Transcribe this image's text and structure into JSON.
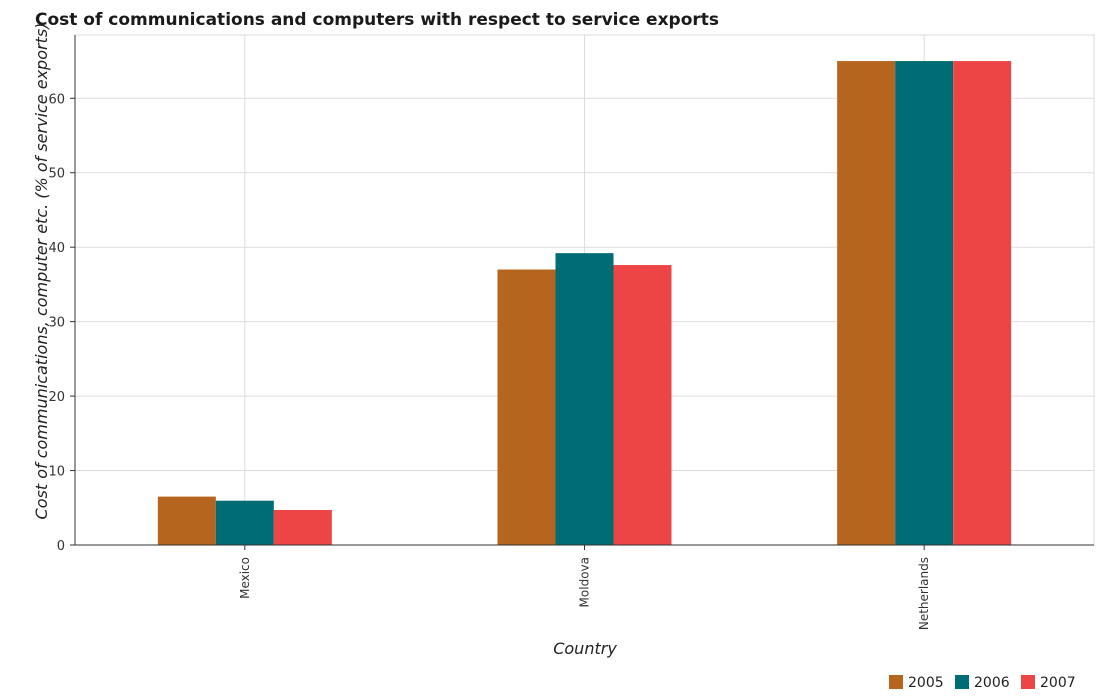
{
  "chart_data": {
    "type": "bar",
    "title": "Cost of communications and computers with respect to service exports",
    "xlabel": "Country",
    "ylabel": "Cost of communications, computer etc. (% of service exports)",
    "categories": [
      "Mexico",
      "Moldova",
      "Netherlands"
    ],
    "series": [
      {
        "name": "2005",
        "color": "#b5651d",
        "values": [
          6.5,
          37.0,
          65.0
        ]
      },
      {
        "name": "2006",
        "color": "#006d75",
        "values": [
          5.95,
          39.2,
          65.0
        ]
      },
      {
        "name": "2007",
        "color": "#ed4545",
        "values": [
          4.7,
          37.6,
          65.0
        ]
      }
    ],
    "ylim": [
      0,
      68.5
    ],
    "yticks": [
      0,
      10,
      20,
      30,
      40,
      50,
      60
    ],
    "grid": true,
    "legend_position": "bottom-right"
  }
}
